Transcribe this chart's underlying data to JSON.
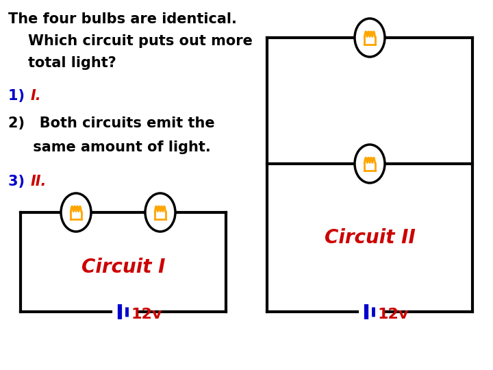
{
  "bg_color": "#ffffff",
  "text_color": "#000000",
  "title_line1": "The four bulbs are identical.",
  "title_line2": "    Which circuit puts out more",
  "title_line3": "    total light?",
  "answer1_num": "1) ",
  "answer1_text": "I.",
  "answer2_line1": "2)   Both circuits emit the",
  "answer2_line2": "     same amount of light.",
  "answer3_num": "3) ",
  "answer3_text": "II.",
  "blue_color": "#0000cc",
  "red_color": "#cc0000",
  "orange_color": "#ffa500",
  "circuit1_label": "Circuit I",
  "circuit2_label": "Circuit II",
  "battery_label": "12v",
  "text_fontsize": 15,
  "circuit_label_fontsize": 20,
  "battery_fontsize": 16
}
